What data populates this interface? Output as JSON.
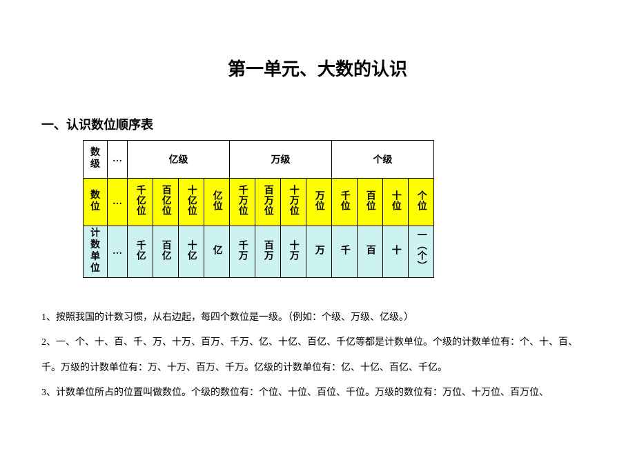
{
  "title": "第一单元、大数的认识",
  "section1_heading": "一、认识数位顺序表",
  "table": {
    "ellipsis": "…",
    "row1": {
      "header": "数级",
      "groups": [
        "亿级",
        "万级",
        "个级"
      ]
    },
    "row2": {
      "header": "数位",
      "cells": [
        "千亿位",
        "百亿位",
        "十亿位",
        "亿位",
        "千万位",
        "百万位",
        "十万位",
        "万位",
        "千位",
        "百位",
        "十位",
        "个位"
      ]
    },
    "row3": {
      "header": "计数单位",
      "cells": [
        "千亿",
        "百亿",
        "十亿",
        "亿",
        "千万",
        "百万",
        "十万",
        "万",
        "千",
        "百",
        "十",
        "一（个）"
      ]
    }
  },
  "para1": "1、按照我国的计数习惯，从右边起，每四个数位是一级。（例如：个级、万级、亿级。）",
  "para2": "2、一、个、十、百、千、万、十万、百万、千万、亿、十亿、百亿、千亿等都是计数单位。个级的计数单位有：个、十、百、千。万级的计数单位有：万、十万、百万、千万。亿级的计数单位有：亿、十亿、百亿、千亿。",
  "para3": "3、计数单位所占的位置叫做数位。个级的数位有：个位、十位、百位、千位。万级的数位有：万位、十万位、百万位、"
}
